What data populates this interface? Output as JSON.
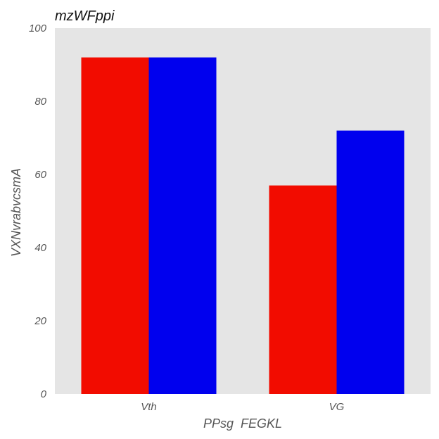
{
  "chart_data": {
    "type": "bar",
    "title": "mzWFppi",
    "xlabel": "PPsg  FEGKL",
    "ylabel": "VXNvrabvcsmA",
    "categories": [
      "Vth",
      "VG"
    ],
    "series": [
      {
        "values": [
          92,
          57
        ],
        "color": "#f20c00"
      },
      {
        "values": [
          92,
          72
        ],
        "color": "#0000ee"
      }
    ],
    "ylim": [
      0,
      100
    ],
    "yticks": [
      0,
      20,
      40,
      60,
      80,
      100
    ],
    "grid": false,
    "legend": "none",
    "background_color": "#e5e5e5"
  }
}
